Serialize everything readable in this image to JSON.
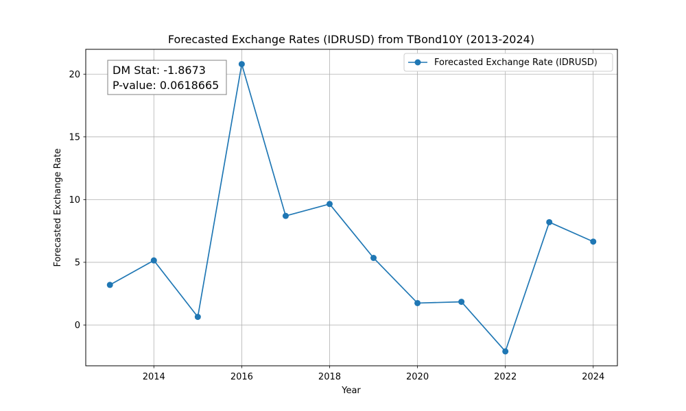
{
  "chart_data": {
    "type": "line",
    "title": "Forecasted Exchange Rates (IDRUSD) from TBond10Y (2013-2024)",
    "xlabel": "Year",
    "ylabel": "Forecasted Exchange Rate",
    "xlim": [
      2012.45,
      2024.55
    ],
    "ylim": [
      -3.25,
      21.98
    ],
    "xticks": [
      2014,
      2016,
      2018,
      2020,
      2022,
      2024
    ],
    "yticks": [
      0,
      5,
      10,
      15,
      20
    ],
    "grid": true,
    "legend_position": "top-right",
    "series": [
      {
        "name": "Forecasted Exchange Rate (IDRUSD)",
        "color": "#1f77b4",
        "marker": "circle",
        "x": [
          2013,
          2014,
          2015,
          2016,
          2017,
          2018,
          2019,
          2020,
          2021,
          2022,
          2023,
          2024
        ],
        "y": [
          3.2,
          5.15,
          0.65,
          20.8,
          8.7,
          9.65,
          5.35,
          1.75,
          1.85,
          -2.1,
          8.2,
          6.65
        ]
      }
    ],
    "annotation": {
      "line1": "DM Stat: -1.8673",
      "line2": "P-value: 0.0618665"
    }
  }
}
